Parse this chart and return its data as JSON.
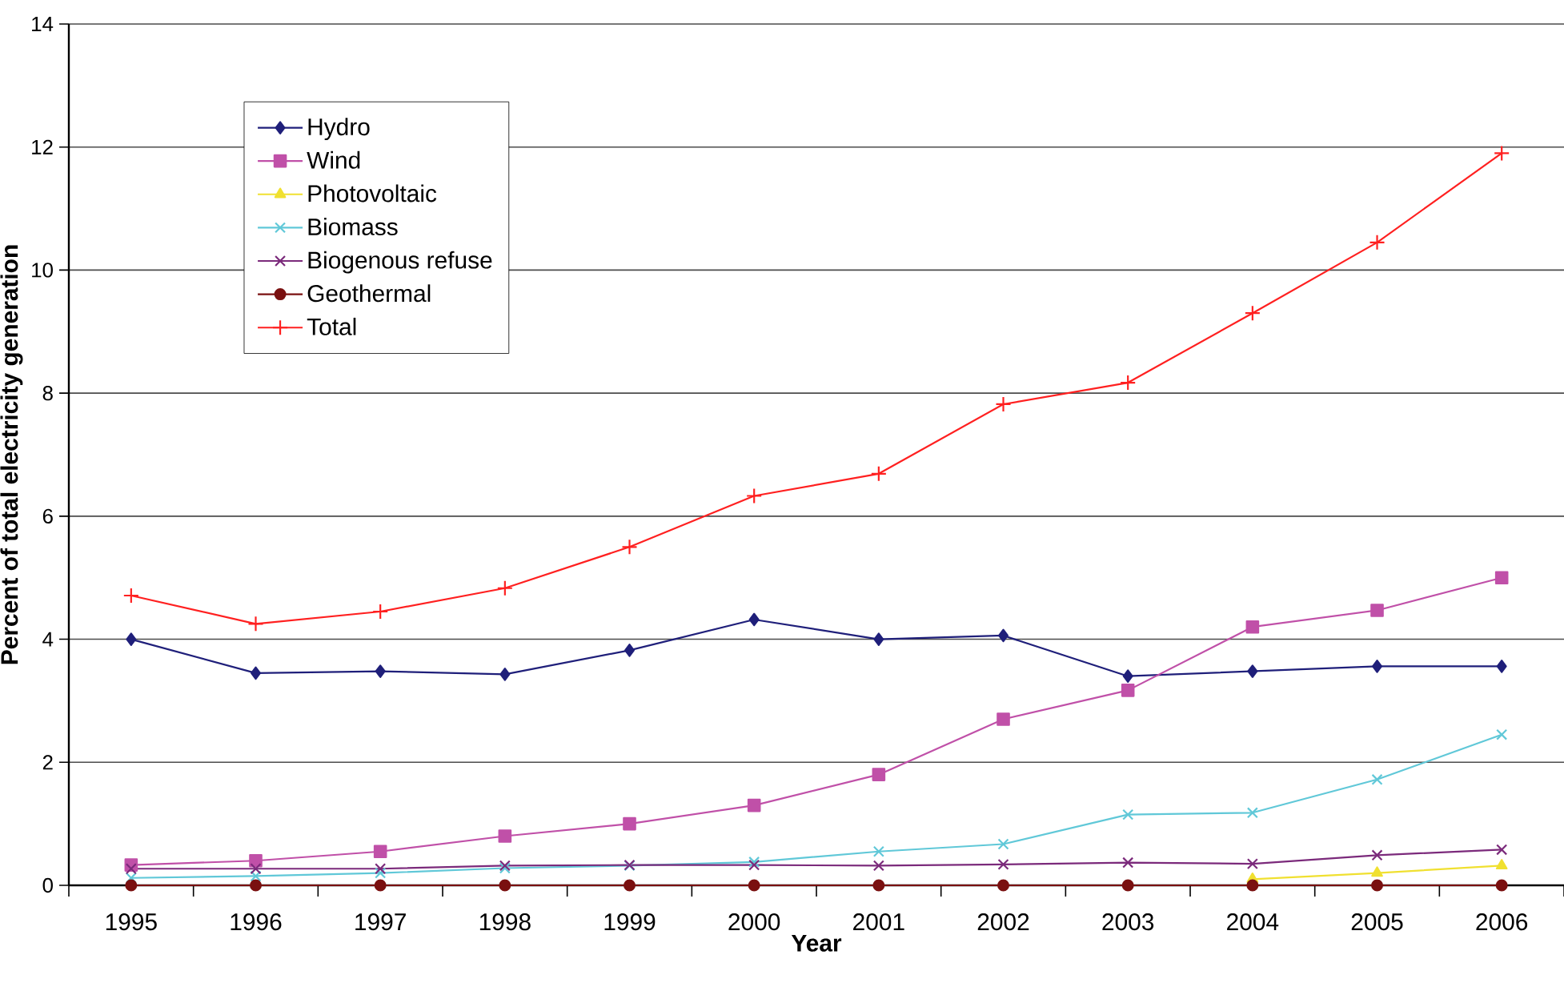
{
  "chart_data": {
    "type": "line",
    "xlabel": "Year",
    "ylabel": "Percent of total electricity generation",
    "categories": [
      "1995",
      "1996",
      "1997",
      "1998",
      "1999",
      "2000",
      "2001",
      "2002",
      "2003",
      "2004",
      "2005",
      "2006"
    ],
    "series": [
      {
        "name": "Hydro",
        "color": "#1f1f7a",
        "marker": "diamond",
        "values": [
          4.0,
          3.45,
          3.48,
          3.43,
          3.82,
          4.32,
          4.0,
          4.06,
          3.4,
          3.48,
          3.56,
          3.56
        ]
      },
      {
        "name": "Wind",
        "color": "#c050a8",
        "marker": "square",
        "values": [
          0.33,
          0.4,
          0.55,
          0.8,
          1.0,
          1.3,
          1.8,
          2.7,
          3.17,
          4.2,
          4.47,
          5.0
        ]
      },
      {
        "name": "Photovoltaic",
        "color": "#f0e030",
        "marker": "triangle",
        "values": [
          null,
          null,
          null,
          null,
          null,
          null,
          null,
          null,
          null,
          0.1,
          0.2,
          0.32
        ]
      },
      {
        "name": "Biomass",
        "color": "#60c8d8",
        "marker": "cross",
        "values": [
          0.12,
          0.15,
          0.2,
          0.28,
          0.32,
          0.38,
          0.55,
          0.67,
          1.15,
          1.18,
          1.72,
          2.45
        ]
      },
      {
        "name": "Biogenous refuse",
        "color": "#7b2a7b",
        "marker": "cross",
        "values": [
          0.27,
          0.27,
          0.27,
          0.32,
          0.33,
          0.33,
          0.32,
          0.34,
          0.37,
          0.35,
          0.49,
          0.58
        ]
      },
      {
        "name": "Geothermal",
        "color": "#7a1010",
        "marker": "circle",
        "values": [
          0,
          0,
          0,
          0,
          0,
          0,
          0,
          0,
          0,
          0,
          0,
          0
        ]
      },
      {
        "name": "Total",
        "color": "#ff2020",
        "marker": "plus",
        "values": [
          4.71,
          4.25,
          4.45,
          4.83,
          5.5,
          6.33,
          6.69,
          7.82,
          8.17,
          9.3,
          10.45,
          11.9
        ]
      }
    ],
    "ylim": [
      0,
      14
    ],
    "yticks": [
      0,
      2,
      4,
      6,
      8,
      10,
      12,
      14
    ],
    "grid": "y",
    "legend": "top left",
    "line_style": "solid"
  }
}
